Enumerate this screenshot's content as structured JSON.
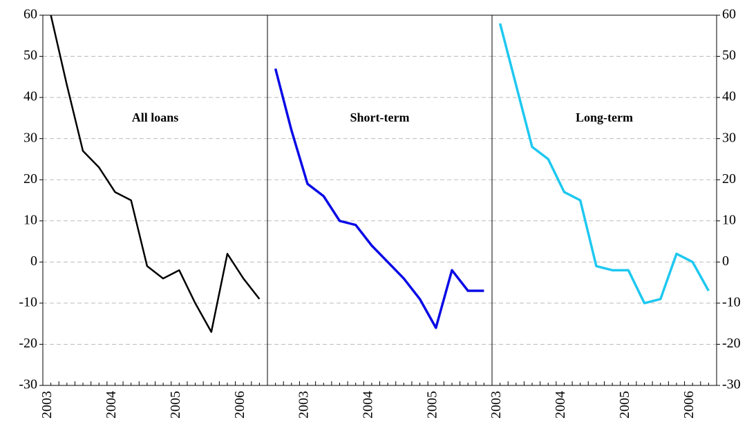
{
  "chart_data": [
    {
      "type": "line",
      "title": "All loans",
      "color": "#000000",
      "categories": [
        "2003",
        null,
        null,
        null,
        "2004",
        null,
        null,
        null,
        "2005",
        null,
        null,
        null,
        "2006",
        null
      ],
      "values": [
        60,
        43,
        27,
        23,
        17,
        15,
        -1,
        -4,
        -2,
        -10,
        -17,
        2,
        -4,
        -9
      ],
      "ylim": [
        -30,
        60
      ],
      "yticks": [
        -30,
        -20,
        -10,
        0,
        10,
        20,
        30,
        40,
        50,
        60
      ],
      "grid": true
    },
    {
      "type": "line",
      "title": "Short-term",
      "color": "#0a0ae6",
      "categories": [
        null,
        null,
        "2003",
        null,
        null,
        null,
        "2004",
        null,
        null,
        null,
        "2005",
        null,
        null,
        null
      ],
      "values": [
        47,
        32,
        19,
        16,
        10,
        9,
        4,
        0,
        -4,
        -9,
        -16,
        -2,
        -7,
        -7
      ],
      "ylim": [
        -30,
        60
      ],
      "yticks": [
        -30,
        -20,
        -10,
        0,
        10,
        20,
        30,
        40,
        50,
        60
      ],
      "grid": true
    },
    {
      "type": "line",
      "title": "Long-term",
      "color": "#1ec8f0",
      "categories": [
        "2003",
        null,
        null,
        null,
        "2004",
        null,
        null,
        null,
        "2005",
        null,
        null,
        null,
        "2006",
        null
      ],
      "values": [
        58,
        43,
        28,
        25,
        17,
        15,
        -1,
        -2,
        -2,
        -10,
        -9,
        2,
        0,
        -7
      ],
      "ylim": [
        -30,
        60
      ],
      "yticks": [
        -30,
        -20,
        -10,
        0,
        10,
        20,
        30,
        40,
        50,
        60
      ],
      "grid": true
    }
  ]
}
